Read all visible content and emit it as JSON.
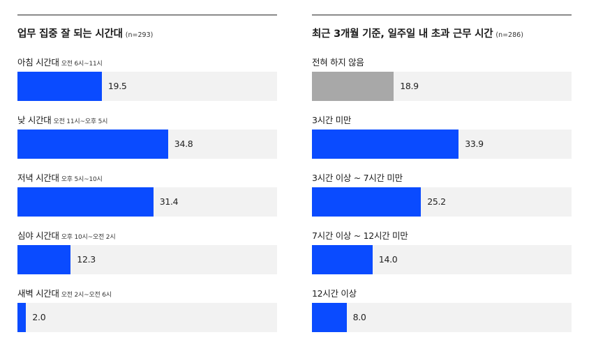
{
  "chart_data": [
    {
      "type": "bar",
      "orientation": "horizontal",
      "title": "업무 집중 잘 되는 시간대",
      "sample_note": "(n=293)",
      "categories": [
        "아침 시간대",
        "낮 시간대",
        "저녁 시간대",
        "심야 시간대",
        "새벽 시간대"
      ],
      "category_notes": [
        "오전 6시~11시",
        "오전 11시~오후 5시",
        "오후 5시~10시",
        "오후 10시~오전 2시",
        "오전 2시~오전 6시"
      ],
      "values": [
        19.5,
        34.8,
        31.4,
        12.3,
        2.0
      ],
      "value_labels": [
        "19.5",
        "34.8",
        "31.4",
        "12.3",
        "2.0"
      ],
      "bar_colors": [
        "#0a4bff",
        "#0a4bff",
        "#0a4bff",
        "#0a4bff",
        "#0a4bff"
      ],
      "xlim": [
        0,
        60
      ],
      "grid": false
    },
    {
      "type": "bar",
      "orientation": "horizontal",
      "title": "최근 3개월 기준, 일주일 내 초과 근무 시간",
      "sample_note": "(n=286)",
      "categories": [
        "전혀 하지 않음",
        "3시간 미만",
        "3시간 이상 ~ 7시간 미만",
        "7시간 이상 ~ 12시간 미만",
        "12시간 이상"
      ],
      "category_notes": [
        "",
        "",
        "",
        "",
        ""
      ],
      "values": [
        18.9,
        33.9,
        25.2,
        14.0,
        8.0
      ],
      "value_labels": [
        "18.9",
        "33.9",
        "25.2",
        "14.0",
        "8.0"
      ],
      "bar_colors": [
        "#a8a8a8",
        "#0a4bff",
        "#0a4bff",
        "#0a4bff",
        "#0a4bff"
      ],
      "xlim": [
        0,
        60
      ],
      "grid": false
    }
  ]
}
